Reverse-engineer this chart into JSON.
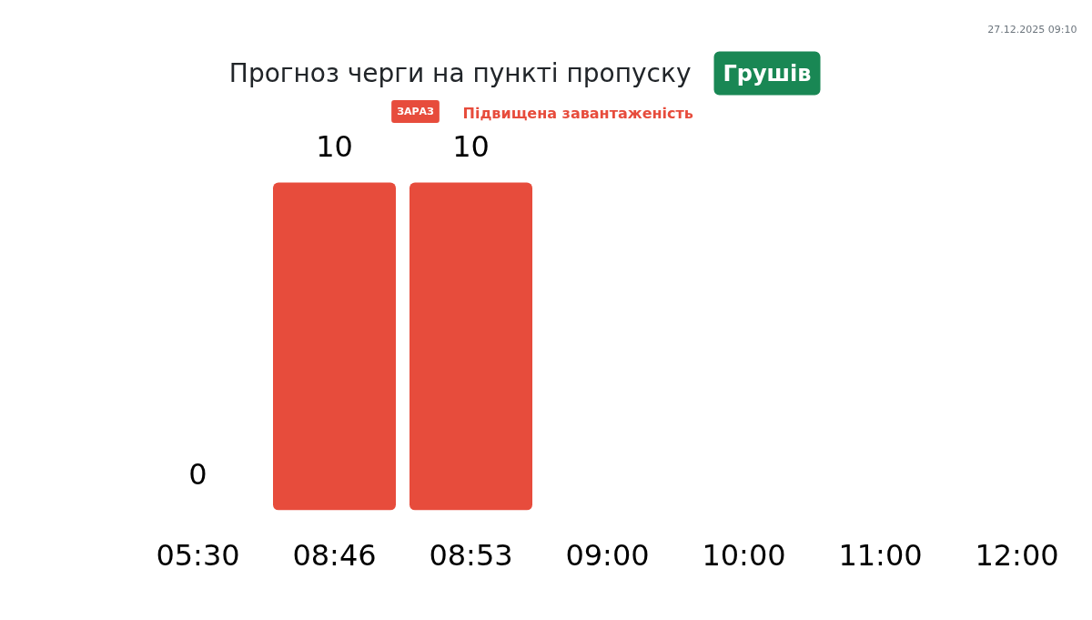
{
  "chart_data": {
    "type": "bar",
    "title": "Прогноз черги на пункті пропуску",
    "categories": [
      "05:30",
      "08:46",
      "08:53",
      "09:00",
      "10:00",
      "11:00",
      "12:00"
    ],
    "values": [
      0,
      10,
      10,
      null,
      null,
      null,
      null
    ],
    "color": "#e74c3c",
    "data_labels": true,
    "annotations": [
      "Грушів",
      "ЗАРАЗ",
      "Підвищена завантаженість",
      "27.12.2025 09:10"
    ]
  }
}
